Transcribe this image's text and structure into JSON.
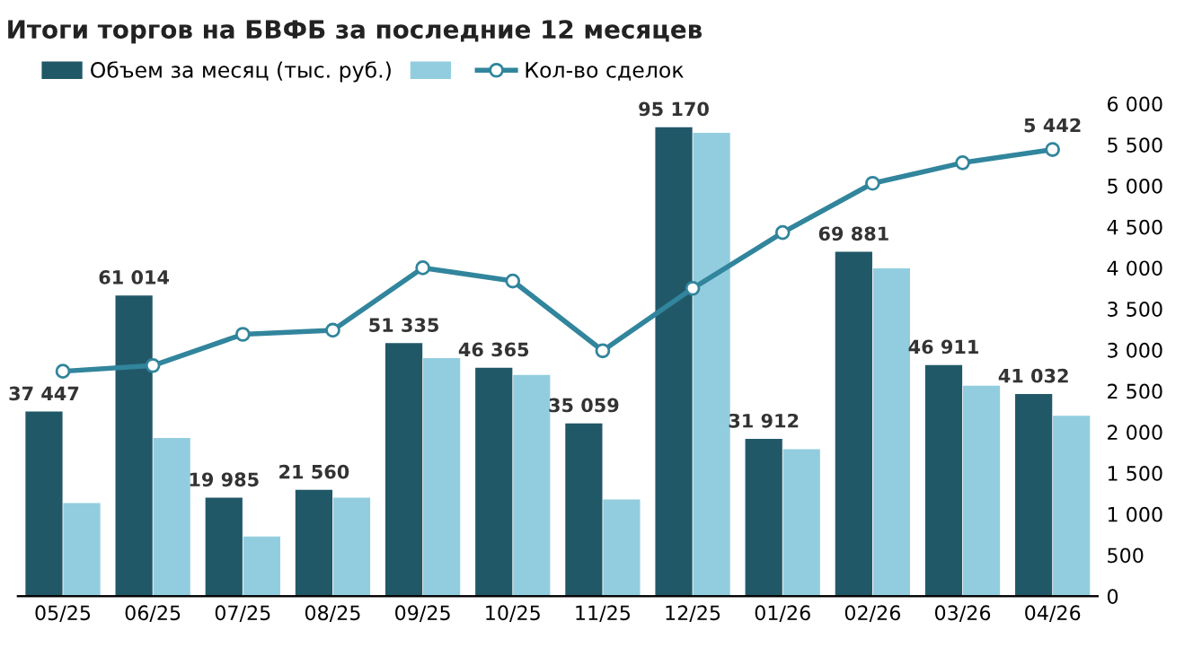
{
  "chart_data": {
    "type": "bar",
    "title": "Итоги торгов на БВФБ за последние 12 месяцев",
    "categories": [
      "05/25",
      "06/25",
      "07/25",
      "08/25",
      "09/25",
      "10/25",
      "11/25",
      "12/25",
      "01/26",
      "02/26",
      "03/26",
      "04/26"
    ],
    "series": [
      {
        "name": "Объем за месяц (тыс. руб.)",
        "color": "#215868",
        "values": [
          37447,
          61014,
          19985,
          21560,
          51335,
          46365,
          35059,
          95170,
          31912,
          69881,
          46911,
          41032
        ],
        "value_labels": [
          "37 447",
          "61 014",
          "19 985",
          "21 560",
          "51 335",
          "46 365",
          "35 059",
          "95 170",
          "31 912",
          "69 881",
          "46 911",
          "41 032"
        ]
      },
      {
        "color": "#92cddf",
        "values": [
          18900,
          32100,
          12100,
          20000,
          48300,
          44900,
          19600,
          94000,
          29800,
          66500,
          42700,
          36600
        ]
      },
      {
        "name": "Кол-во сделок",
        "type": "line",
        "axis": "y2",
        "color": "#31859c",
        "marker": "circle",
        "values": [
          2740,
          2810,
          3190,
          3240,
          4000,
          3840,
          2990,
          3750,
          4430,
          5030,
          5280,
          5442
        ],
        "value_labels": [
          null,
          null,
          null,
          null,
          null,
          null,
          null,
          null,
          null,
          null,
          null,
          "5 442"
        ]
      }
    ],
    "y2lim": [
      0,
      6000
    ],
    "y2ticks": [
      {
        "value": 0,
        "label": "0"
      },
      {
        "value": 500,
        "label": "500"
      },
      {
        "value": 1000,
        "label": "1 000"
      },
      {
        "value": 1500,
        "label": "1 500"
      },
      {
        "value": 2000,
        "label": "2 000"
      },
      {
        "value": 2500,
        "label": "2 500"
      },
      {
        "value": 3000,
        "label": "3 000"
      },
      {
        "value": 3500,
        "label": "3 500"
      },
      {
        "value": 4000,
        "label": "4 000"
      },
      {
        "value": 4500,
        "label": "4 500"
      },
      {
        "value": 5000,
        "label": "5 000"
      },
      {
        "value": 5500,
        "label": "5 500"
      },
      {
        "value": 6000,
        "label": "6 000"
      }
    ],
    "legend": "top left"
  }
}
